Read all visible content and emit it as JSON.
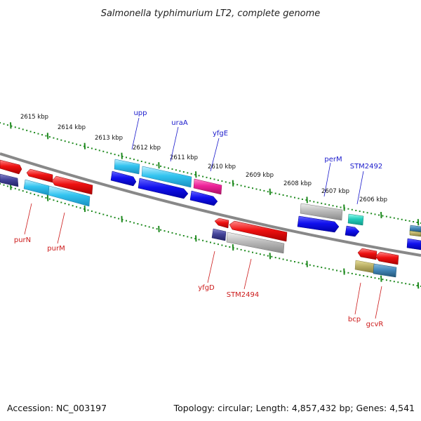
{
  "title": "Salmonella typhimurium LT2, complete genome",
  "footer": {
    "accession": "Accession: NC_003197",
    "topology": "Topology: circular; Length: 4,857,432 bp; Genes: 4,541"
  },
  "scale_labels": [
    "2615 kbp",
    "2614 kbp",
    "2613 kbp",
    "2612 kbp",
    "2611 kbp",
    "2610 kbp",
    "2609 kbp",
    "2608 kbp",
    "2607 kbp",
    "2606 kbp"
  ],
  "genes_top": [
    {
      "name": "upp",
      "color": "#1a1acc"
    },
    {
      "name": "uraA",
      "color": "#1a1acc"
    },
    {
      "name": "yfgE",
      "color": "#1a1acc"
    },
    {
      "name": "perM",
      "color": "#1a1acc"
    },
    {
      "name": "STM2492",
      "color": "#1a1acc"
    }
  ],
  "genes_bottom": [
    {
      "name": "purN",
      "color": "#cc1a1a"
    },
    {
      "name": "purM",
      "color": "#cc1a1a"
    },
    {
      "name": "yfgD",
      "color": "#cc1a1a"
    },
    {
      "name": "STM2494",
      "color": "#cc1a1a"
    },
    {
      "name": "bcp",
      "color": "#cc1a1a"
    },
    {
      "name": "gcvR",
      "color": "#cc1a1a"
    }
  ],
  "colors": {
    "backbone": "#888888",
    "ticks": "#1f8a1f",
    "forward_gene": "#1111dd",
    "reverse_gene": "#ee1111",
    "cyan_gene": "#22bbee",
    "magenta_gene": "#ee2299",
    "grey_gene": "#bbbbbb",
    "navy_gene": "#444499",
    "olive_gene": "#bbb066",
    "steel_gene": "#4488bb",
    "teal_gene": "#22ccbb"
  }
}
